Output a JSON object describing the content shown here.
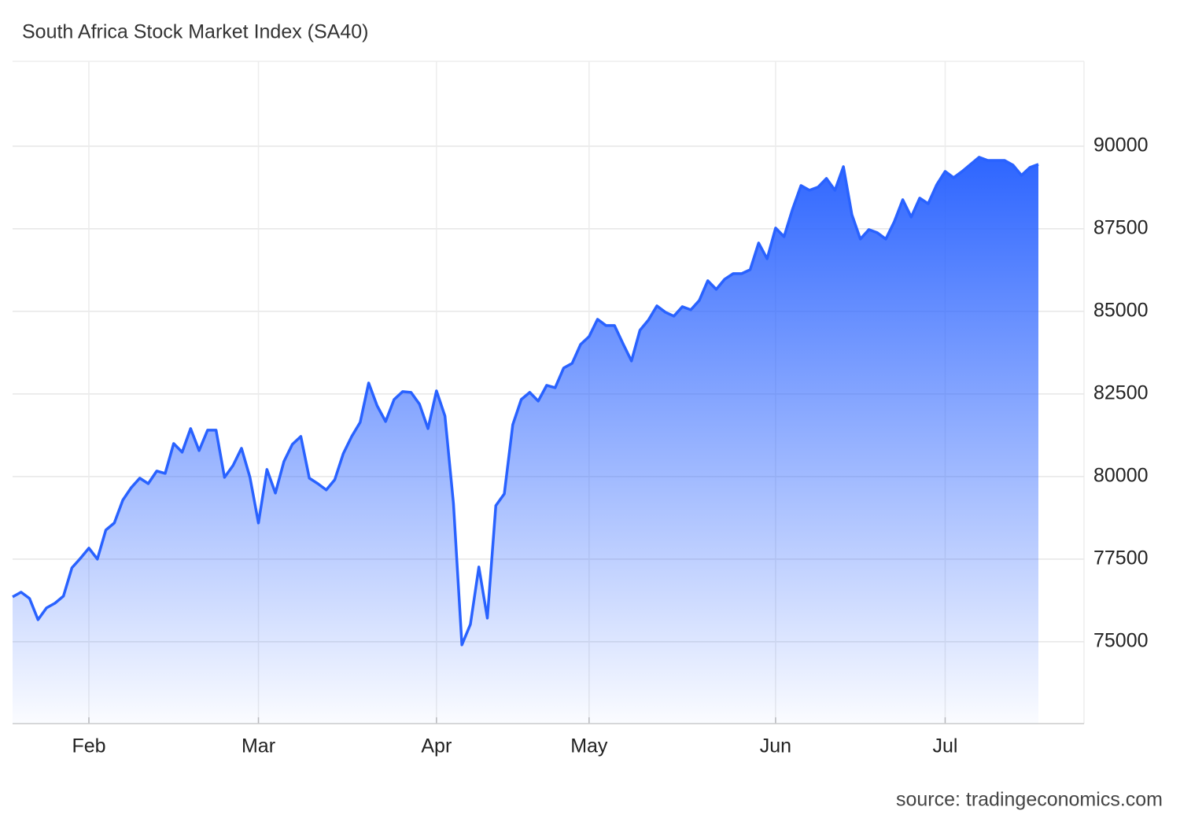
{
  "chart_data": {
    "type": "area",
    "title": "South Africa Stock Market Index (SA40)",
    "source": "source: tradingeconomics.com",
    "color": "#2962ff",
    "grid": true,
    "categories": [
      null,
      null,
      null,
      null,
      null,
      null,
      null,
      null,
      null,
      "Feb",
      null,
      null,
      null,
      null,
      null,
      null,
      null,
      null,
      null,
      null,
      null,
      null,
      null,
      null,
      null,
      null,
      null,
      null,
      null,
      "Mar",
      null,
      null,
      null,
      null,
      null,
      null,
      null,
      null,
      null,
      null,
      null,
      null,
      null,
      null,
      null,
      null,
      null,
      null,
      null,
      null,
      "Apr",
      null,
      null,
      null,
      null,
      null,
      null,
      null,
      null,
      null,
      null,
      null,
      null,
      null,
      null,
      null,
      null,
      null,
      "May",
      null,
      null,
      null,
      null,
      null,
      null,
      null,
      null,
      null,
      null,
      null,
      null,
      null,
      null,
      null,
      null,
      null,
      null,
      null,
      null,
      null,
      "Jun",
      null,
      null,
      null,
      null,
      null,
      null,
      null,
      null,
      null,
      null,
      null,
      null,
      null,
      null,
      null,
      null,
      null,
      null,
      null,
      "Jul",
      null,
      null,
      null,
      null,
      null,
      null,
      null,
      null,
      null,
      null,
      null
    ],
    "values": [
      76357,
      76500,
      76309,
      75666,
      76024,
      76166,
      76381,
      77238,
      77524,
      77833,
      77500,
      78381,
      78595,
      79286,
      79666,
      79952,
      79786,
      80167,
      80095,
      81000,
      80738,
      81452,
      80786,
      81405,
      81405,
      79976,
      80333,
      80857,
      79976,
      78595,
      80214,
      79500,
      80452,
      80976,
      81214,
      79952,
      79786,
      79595,
      79905,
      80690,
      81214,
      81643,
      82833,
      82143,
      81667,
      82333,
      82571,
      82548,
      82190,
      81452,
      82595,
      81833,
      79190,
      74904,
      75524,
      77262,
      75714,
      79119,
      79476,
      81571,
      82333,
      82548,
      82286,
      82762,
      82690,
      83286,
      83428,
      84000,
      84238,
      84762,
      84571,
      84571,
      84024,
      83500,
      84429,
      84738,
      85167,
      84976,
      84857,
      85143,
      85048,
      85333,
      85929,
      85667,
      85976,
      86143,
      86143,
      86262,
      87071,
      86595,
      87524,
      87262,
      88095,
      88810,
      88667,
      88762,
      89024,
      88667,
      89381,
      87929,
      87190,
      87476,
      87381,
      87190,
      87714,
      88381,
      87857,
      88429,
      88262,
      88833,
      89238,
      89048,
      89238,
      89452,
      89667,
      89571,
      89571,
      89571,
      89429,
      89119,
      89357,
      89452
    ],
    "ylim": [
      72520,
      92570
    ],
    "yticks": [
      75000,
      77500,
      80000,
      82500,
      85000,
      87500,
      90000
    ]
  }
}
